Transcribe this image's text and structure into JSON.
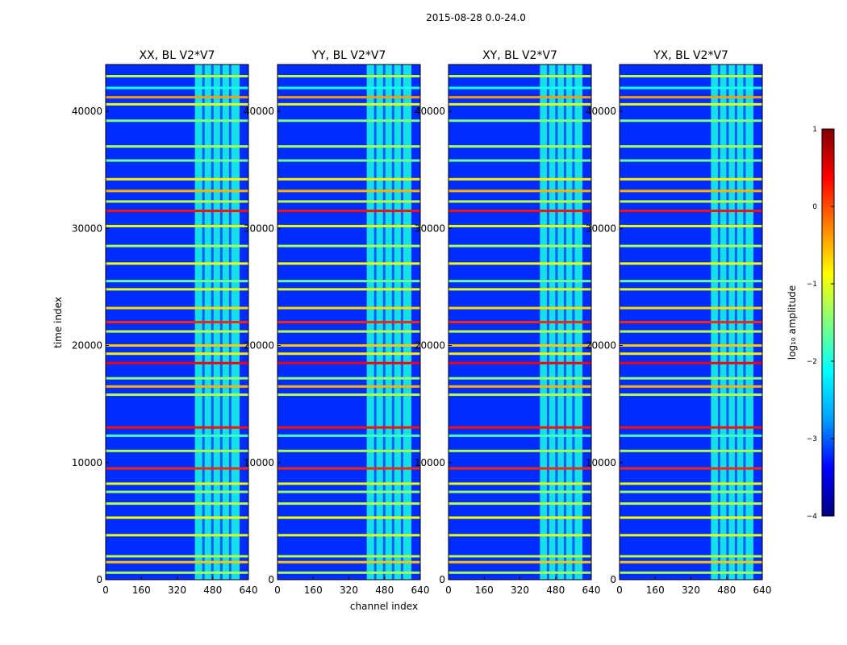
{
  "suptitle": "2015-08-28 0.0-24.0",
  "chart_data": {
    "type": "heatmap",
    "xlabel": "channel index",
    "ylabel": "time index",
    "xlim": [
      0,
      640
    ],
    "ylim": [
      0,
      44000
    ],
    "x_ticks": [
      0,
      160,
      320,
      480,
      640
    ],
    "y_ticks": [
      0,
      10000,
      20000,
      30000,
      40000
    ],
    "panels": [
      {
        "title": "XX, BL V2*V7",
        "channel_band": [
          400,
          600
        ]
      },
      {
        "title": "YY, BL V2*V7",
        "channel_band": [
          400,
          600
        ]
      },
      {
        "title": "XY, BL V2*V7",
        "channel_band": [
          410,
          600
        ]
      },
      {
        "title": "YX, BL V2*V7",
        "channel_band": [
          410,
          600
        ]
      }
    ],
    "horizontal_feature_rows": [
      {
        "time": 43000,
        "level": -1.2
      },
      {
        "time": 42000,
        "level": -2.0
      },
      {
        "time": 41200,
        "level": -0.4
      },
      {
        "time": 40600,
        "level": -1.0
      },
      {
        "time": 39200,
        "level": -1.5
      },
      {
        "time": 37000,
        "level": -1.3
      },
      {
        "time": 35800,
        "level": -1.6
      },
      {
        "time": 34200,
        "level": -0.8
      },
      {
        "time": 33200,
        "level": -0.5
      },
      {
        "time": 32300,
        "level": -1.2
      },
      {
        "time": 31500,
        "level": 0.3
      },
      {
        "time": 30200,
        "level": -1.0
      },
      {
        "time": 28500,
        "level": -1.3
      },
      {
        "time": 27000,
        "level": -0.9
      },
      {
        "time": 25500,
        "level": -1.6
      },
      {
        "time": 24800,
        "level": -1.0
      },
      {
        "time": 23200,
        "level": -0.7
      },
      {
        "time": 22000,
        "level": 0.2
      },
      {
        "time": 21200,
        "level": -1.2
      },
      {
        "time": 20000,
        "level": -0.6
      },
      {
        "time": 19300,
        "level": -0.8
      },
      {
        "time": 18500,
        "level": 0.4
      },
      {
        "time": 17200,
        "level": -1.4
      },
      {
        "time": 16500,
        "level": -0.5
      },
      {
        "time": 15800,
        "level": -1.2
      },
      {
        "time": 13000,
        "level": 0.3
      },
      {
        "time": 12300,
        "level": -1.8
      },
      {
        "time": 11000,
        "level": -1.3
      },
      {
        "time": 9500,
        "level": 0.2
      },
      {
        "time": 8200,
        "level": -1.0
      },
      {
        "time": 7500,
        "level": -1.4
      },
      {
        "time": 6500,
        "level": -1.2
      },
      {
        "time": 5300,
        "level": -0.9
      },
      {
        "time": 3800,
        "level": -1.0
      },
      {
        "time": 2000,
        "level": -1.2
      },
      {
        "time": 1500,
        "level": -0.6
      },
      {
        "time": 600,
        "level": -1.3
      }
    ],
    "colorbar": {
      "label": "log₁₀ amplitude",
      "range": [
        -4,
        1
      ],
      "ticks": [
        "1",
        "0",
        "−1",
        "−2",
        "−3",
        "−4"
      ],
      "colors": [
        "#000080",
        "#0000ff",
        "#00a0ff",
        "#00ffff",
        "#7fff7f",
        "#ffff00",
        "#ff8000",
        "#ff0000",
        "#800000"
      ]
    }
  }
}
